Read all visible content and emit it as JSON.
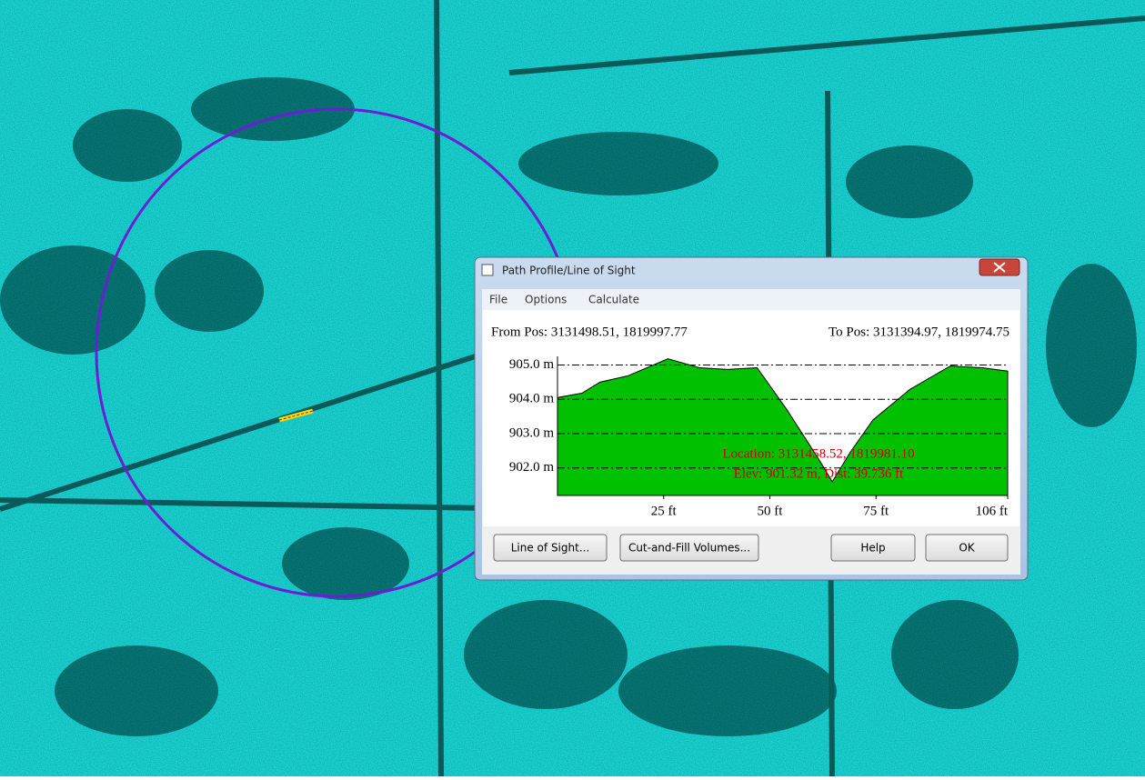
{
  "window": {
    "title": "Path Profile/Line of Sight"
  },
  "menu": [
    "File",
    "Options",
    "Calculate"
  ],
  "from_pos": "From Pos: 3131498.51, 1819997.77",
  "to_pos": "To Pos: 3131394.97, 1819974.75",
  "chart_data": {
    "type": "area",
    "x": [
      0,
      5.8,
      10,
      16.5,
      26,
      33.4,
      40,
      47,
      54,
      61.5,
      64.7,
      69,
      74.3,
      83,
      92.5,
      100,
      106
    ],
    "values": [
      904.05,
      904.18,
      904.5,
      904.68,
      905.18,
      904.92,
      904.87,
      904.92,
      903.7,
      902.26,
      901.6,
      902.47,
      903.4,
      904.29,
      904.97,
      904.92,
      904.82
    ],
    "color": "#00c000",
    "xlim": [
      0,
      106
    ],
    "ylim": [
      901.2,
      905.25
    ],
    "yticks": [
      {
        "value": 905,
        "label": "905.0 m"
      },
      {
        "value": 904,
        "label": "904.0 m"
      },
      {
        "value": 903,
        "label": "903.0 m"
      },
      {
        "value": 902,
        "label": "902.0 m"
      }
    ],
    "xticks": [
      {
        "value": 25,
        "label": "25 ft"
      },
      {
        "value": 50,
        "label": "50 ft"
      },
      {
        "value": 75,
        "label": "75 ft"
      },
      {
        "value": 106,
        "label": "106 ft"
      }
    ],
    "grid": true,
    "annotations": [
      "Location: 3131458.52, 1819981.10",
      "Elev: 901.32 m, Dist: 39.736 ft"
    ]
  },
  "buttons": [
    "Line of Sight...",
    "Cut-and-Fill Volumes...",
    "Help",
    "OK"
  ]
}
